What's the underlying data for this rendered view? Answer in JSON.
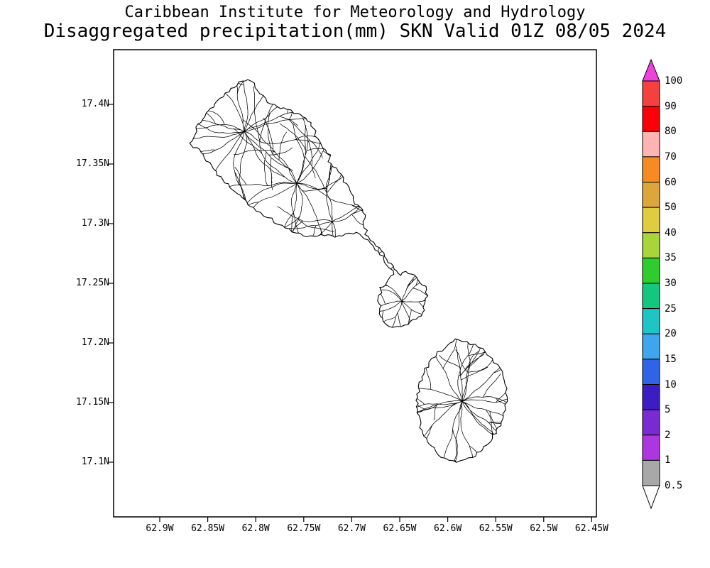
{
  "header": {
    "title": "Caribbean Institute for Meteorology and Hydrology",
    "subtitle": "Disaggregated precipitation(mm) SKN Valid 01Z 08/05 2024"
  },
  "map": {
    "lat_ticks": [
      "17.4N",
      "17.35N",
      "17.3N",
      "17.25N",
      "17.2N",
      "17.15N",
      "17.1N"
    ],
    "lon_ticks": [
      "62.9W",
      "62.85W",
      "62.8W",
      "62.75W",
      "62.7W",
      "62.65W",
      "62.6W",
      "62.55W",
      "62.5W",
      "62.45W"
    ]
  },
  "colorbar": {
    "labels": [
      "100",
      "90",
      "80",
      "70",
      "60",
      "50",
      "40",
      "35",
      "30",
      "25",
      "20",
      "15",
      "10",
      "5",
      "2",
      "1",
      "0.5"
    ],
    "segment_colors_top_to_bottom": [
      "#f5413d",
      "#fb0007",
      "#ffb3b3",
      "#f68b23",
      "#dda63c",
      "#e0cc41",
      "#a7d53a",
      "#2fcc2f",
      "#14c77e",
      "#1fc4c4",
      "#3da6ec",
      "#2f63e8",
      "#3c1cc3",
      "#7a2ad2",
      "#ad36e0",
      "#a8a8a8"
    ],
    "arrow_top_color": "#ee42dd",
    "arrow_bottom_color": "#ffffff",
    "outline_color": "#000000",
    "line_color": "#000000"
  }
}
